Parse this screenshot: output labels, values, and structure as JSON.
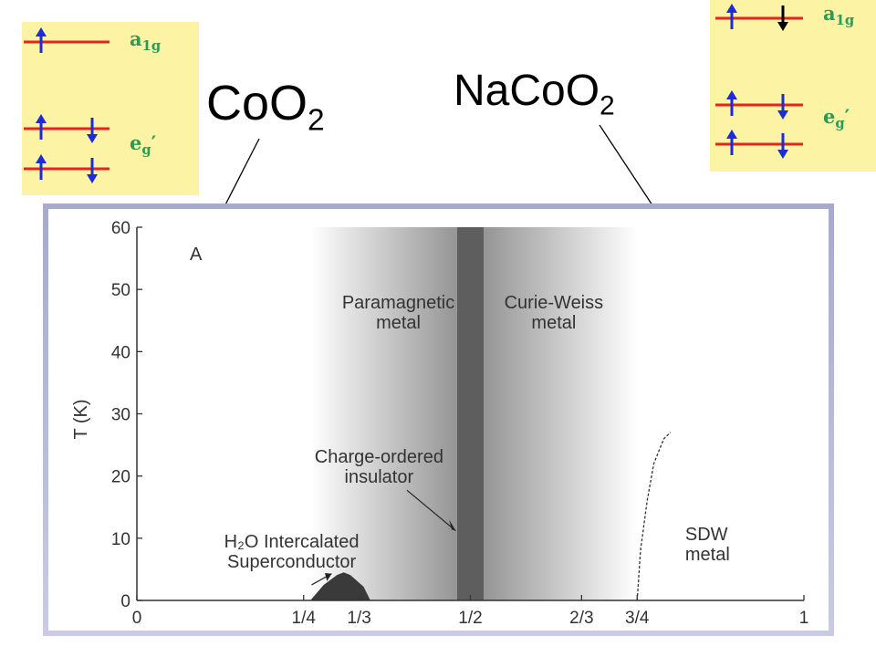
{
  "formula_left": {
    "base": "CoO",
    "sub": "2"
  },
  "formula_right": {
    "base": "NaCoO",
    "sub": "2"
  },
  "orbital_left": {
    "a1g": {
      "text": "a",
      "sub": "1g"
    },
    "eg": {
      "text": "e",
      "sub": "g",
      "prime": "′"
    }
  },
  "orbital_right": {
    "a1g": {
      "text": "a",
      "sub": "1g"
    },
    "eg": {
      "text": "e",
      "sub": "g",
      "prime": "′"
    }
  },
  "colors": {
    "panel_bg": "#fdf3a4",
    "level_line": "#e8231f",
    "spin_up": "#1d2cd8",
    "spin_down_unpaired": "#000000",
    "label_green": "#2e9a57",
    "frame_border": "#a7a9d0"
  },
  "chart_data": {
    "type": "area",
    "panel_letter": "A",
    "ylabel": "T (K)",
    "xlabel": "",
    "xlim": [
      0,
      1
    ],
    "ylim": [
      0,
      60
    ],
    "y_ticks": [
      0,
      10,
      20,
      30,
      40,
      50,
      60
    ],
    "x_ticks": [
      {
        "value": 0,
        "label": "0"
      },
      {
        "value": 0.25,
        "label": "1/4"
      },
      {
        "value": 0.3333,
        "label": "1/3"
      },
      {
        "value": 0.5,
        "label": "1/2"
      },
      {
        "value": 0.6667,
        "label": "2/3"
      },
      {
        "value": 0.75,
        "label": "3/4"
      },
      {
        "value": 1,
        "label": "1"
      }
    ],
    "regions": [
      {
        "label": [
          "Paramagnetic",
          "metal"
        ]
      },
      {
        "label": [
          "Curie-Weiss",
          "metal"
        ]
      },
      {
        "label": [
          "Charge-ordered",
          "insulator"
        ]
      },
      {
        "label": [
          "H₂O Intercalated",
          "Superconductor"
        ]
      },
      {
        "label": [
          "SDW",
          "metal"
        ]
      }
    ],
    "charge_ordered_band": [
      0.48,
      0.52
    ],
    "gradient_left": [
      0.26,
      0.48
    ],
    "gradient_right": [
      0.52,
      0.75
    ],
    "superconducting_dome": [
      [
        0.26,
        0
      ],
      [
        0.28,
        2.5
      ],
      [
        0.3,
        4.1
      ],
      [
        0.31,
        4.5
      ],
      [
        0.32,
        4.1
      ],
      [
        0.34,
        2.2
      ],
      [
        0.35,
        0
      ]
    ],
    "sdw_boundary": [
      [
        0.75,
        0
      ],
      [
        0.755,
        8
      ],
      [
        0.765,
        16
      ],
      [
        0.775,
        22
      ],
      [
        0.79,
        26
      ],
      [
        0.8,
        27
      ]
    ]
  }
}
